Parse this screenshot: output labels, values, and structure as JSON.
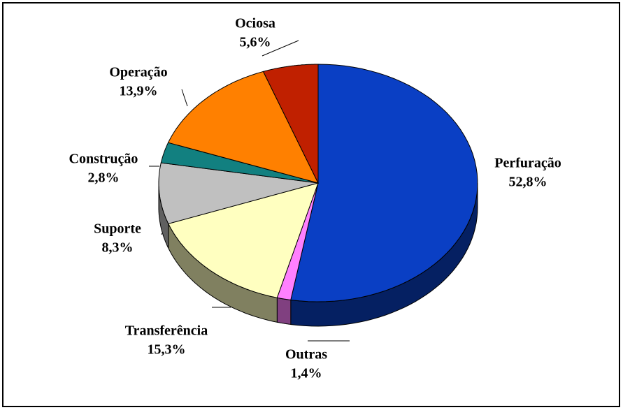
{
  "chart_data": {
    "type": "pie",
    "categories": [
      "Perfuração",
      "Outras",
      "Transferência",
      "Suporte",
      "Construção",
      "Operação",
      "Ociosa"
    ],
    "values": [
      52.8,
      1.4,
      15.3,
      8.3,
      2.8,
      13.9,
      5.6
    ],
    "value_labels": [
      "52,8%",
      "1,4%",
      "15,3%",
      "8,3%",
      "2,8%",
      "13,9%",
      "5,6%"
    ],
    "colors": [
      "#0a3fc4",
      "#ff80ff",
      "#ffffc0",
      "#c0c0c0",
      "#128080",
      "#ff8000",
      "#c02000"
    ]
  }
}
